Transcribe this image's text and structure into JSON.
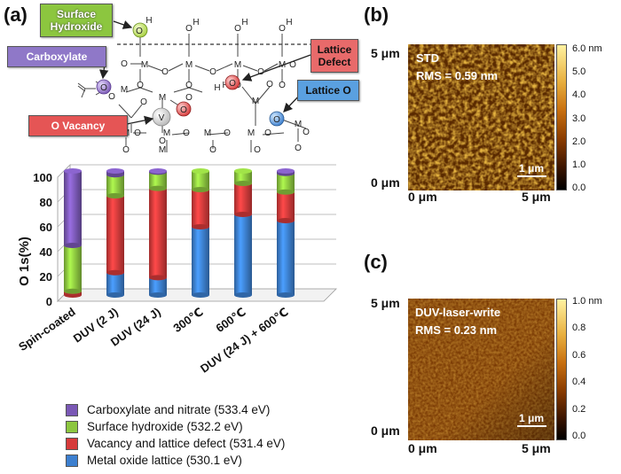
{
  "panels": {
    "a": "(a)",
    "b": "(b)",
    "c": "(c)"
  },
  "schematic": {
    "callouts": {
      "surface_hydroxide": "Surface Hydroxide",
      "carboxylate": "Carboxylate",
      "lattice_defect": "Lattice Defect",
      "o_vacancy": "O Vacancy",
      "lattice_o": "Lattice O"
    },
    "atoms": {
      "metal": "M",
      "oxygen": "O",
      "hydrogen": "H",
      "vacancy": "V",
      "hydroxyl": "HO"
    },
    "colors": {
      "hydroxide": "#c6e36a",
      "carboxylate": "#9b7fd0",
      "defect": "#e05252",
      "lattice_o": "#5aa0e0",
      "vacancy": "#dddddd"
    }
  },
  "chart_data": {
    "type": "bar",
    "stacked": true,
    "ylabel": "O 1s(%)",
    "ylim": [
      0,
      100
    ],
    "yticks": [
      "0",
      "20",
      "40",
      "60",
      "80",
      "100"
    ],
    "categories": [
      "Spin-coated",
      "DUV (2 J)",
      "DUV (24 J)",
      "300℃",
      "600℃",
      "DUV (24 J) + 600℃"
    ],
    "series": [
      {
        "name": "Metal oxide lattice (530.1 eV)",
        "color": "#3c7fcf",
        "values": [
          0,
          18,
          14,
          55,
          65,
          60
        ]
      },
      {
        "name": "Vacancy and lattice defect (531.4 eV)",
        "color": "#d63a3a",
        "values": [
          3,
          62,
          72,
          30,
          25,
          23
        ]
      },
      {
        "name": "Surface hydroxide (532.2 eV)",
        "color": "#8cc63f",
        "values": [
          37,
          17,
          13,
          15,
          10,
          15
        ]
      },
      {
        "name": "Carboxylate and nitrate (533.4 eV)",
        "color": "#7a58b5",
        "values": [
          60,
          3,
          1,
          0,
          0,
          2
        ]
      }
    ]
  },
  "afm_std": {
    "title": "STD",
    "rms": "RMS = 0.59 nm",
    "y_top": "5 μm",
    "y_bottom": "0 μm",
    "x_left": "0 μm",
    "x_right": "5 μm",
    "scale_bar": "1 μm",
    "colorbar_ticks": [
      "6.0 nm",
      "5.0",
      "4.0",
      "3.0",
      "2.0",
      "1.0",
      "0.0"
    ]
  },
  "afm_duv": {
    "title": "DUV-laser-write",
    "rms": "RMS = 0.23 nm",
    "y_top": "5 μm",
    "y_bottom": "0 μm",
    "x_left": "0 μm",
    "x_right": "5 μm",
    "scale_bar": "1 μm",
    "colorbar_ticks": [
      "1.0 nm",
      "0.8",
      "0.6",
      "0.4",
      "0.2",
      "0.0"
    ]
  }
}
